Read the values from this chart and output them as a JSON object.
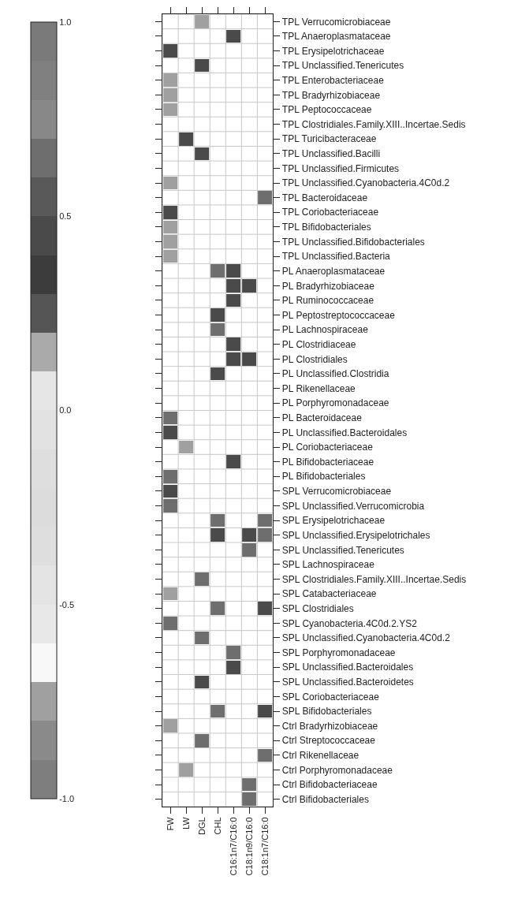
{
  "chart_data": {
    "type": "heatmap",
    "categories": [
      "FW",
      "LW",
      "DGL",
      "CHL",
      "C16:1n7/C16:0",
      "C18:1n9/C16:0",
      "C18:1n7/C16:0"
    ],
    "y_categories": [
      "TPL Verrucomicrobiaceae",
      "TPL Anaeroplasmataceae",
      "TPL Erysipelotrichaceae",
      "TPL Unclassified.Tenericutes",
      "TPL Enterobacteriaceae",
      "TPL Bradyrhizobiaceae",
      "TPL Peptococcaceae",
      "TPL Clostridiales.Family.XIII..Incertae.Sedis",
      "TPL Turicibacteraceae",
      "TPL Unclassified.Bacilli",
      "TPL Unclassified.Firmicutes",
      "TPL Unclassified.Cyanobacteria.4C0d.2",
      "TPL Bacteroidaceae",
      "TPL Coriobacteriaceae",
      "TPL Bifidobacteriales",
      "TPL Unclassified.Bifidobacteriales",
      "TPL Unclassified.Bacteria",
      "PL Anaeroplasmataceae",
      "PL Bradyrhizobiaceae",
      "PL Ruminococcaceae",
      "PL Peptostreptococcaceae",
      "PL Lachnospiraceae",
      "PL Clostridiaceae",
      "PL Clostridiales",
      "PL Unclassified.Clostridia",
      "PL Rikenellaceae",
      "PL Porphyromonadaceae",
      "PL Bacteroidaceae",
      "PL Unclassified.Bacteroidales",
      "PL Coriobacteriaceae",
      "PL Bifidobacteriaceae",
      "PL Bifidobacteriales",
      "SPL Verrucomicrobiaceae",
      "SPL Unclassified.Verrucomicrobia",
      "SPL Erysipelotrichaceae",
      "SPL Unclassified.Erysipelotrichales",
      "SPL Unclassified.Tenericutes",
      "SPL Lachnospiraceae",
      "SPL Clostridiales.Family.XIII..Incertae.Sedis",
      "SPL Catabacteriaceae",
      "SPL Clostridiales",
      "SPL Cyanobacteria.4C0d.2.YS2",
      "SPL Unclassified.Cyanobacteria.4C0d.2",
      "SPL Porphyromonadaceae",
      "SPL Unclassified.Bacteroidales",
      "SPL Unclassified.Bacteroidetes",
      "SPL Coriobacteriaceae",
      "SPL Bifidobacteriales",
      "Ctrl Bradyrhizobiaceae",
      "Ctrl Streptococcaceae",
      "Ctrl Rikenellaceae",
      "Ctrl Porphyromonadaceae",
      "Ctrl Bifidobacteriaceae",
      "Ctrl Bifidobacteriales"
    ],
    "cells": [
      [
        null,
        null,
        -0.75,
        null,
        null,
        null,
        null
      ],
      [
        null,
        null,
        null,
        null,
        0.45,
        null,
        null
      ],
      [
        0.45,
        null,
        null,
        null,
        null,
        null,
        null
      ],
      [
        null,
        null,
        0.45,
        null,
        null,
        null,
        null
      ],
      [
        -0.75,
        null,
        null,
        null,
        null,
        null,
        null
      ],
      [
        -0.75,
        null,
        null,
        null,
        null,
        null,
        null
      ],
      [
        -0.75,
        null,
        null,
        null,
        null,
        null,
        null
      ],
      [
        null,
        null,
        null,
        null,
        null,
        null,
        null
      ],
      [
        null,
        0.45,
        null,
        null,
        null,
        null,
        null
      ],
      [
        null,
        null,
        0.45,
        null,
        null,
        null,
        null
      ],
      [
        null,
        null,
        null,
        null,
        null,
        null,
        null
      ],
      [
        -0.75,
        null,
        null,
        null,
        null,
        null,
        null
      ],
      [
        null,
        null,
        null,
        null,
        null,
        null,
        0.65
      ],
      [
        0.45,
        null,
        null,
        null,
        null,
        null,
        null
      ],
      [
        -0.75,
        null,
        null,
        null,
        null,
        null,
        null
      ],
      [
        -0.75,
        null,
        null,
        null,
        null,
        null,
        null
      ],
      [
        -0.75,
        null,
        null,
        null,
        null,
        null,
        null
      ],
      [
        null,
        null,
        null,
        0.65,
        0.45,
        null,
        null
      ],
      [
        null,
        null,
        null,
        null,
        0.45,
        0.45,
        null
      ],
      [
        null,
        null,
        null,
        null,
        0.45,
        null,
        null
      ],
      [
        null,
        null,
        null,
        0.45,
        null,
        null,
        null
      ],
      [
        null,
        null,
        null,
        0.65,
        null,
        null,
        null
      ],
      [
        null,
        null,
        null,
        null,
        0.45,
        null,
        null
      ],
      [
        null,
        null,
        null,
        null,
        0.45,
        0.45,
        null
      ],
      [
        null,
        null,
        null,
        0.45,
        null,
        null,
        null
      ],
      [
        null,
        null,
        null,
        null,
        null,
        null,
        null
      ],
      [
        null,
        null,
        null,
        null,
        null,
        null,
        null
      ],
      [
        0.65,
        null,
        null,
        null,
        null,
        null,
        null
      ],
      [
        0.45,
        null,
        null,
        null,
        null,
        null,
        null
      ],
      [
        null,
        -0.75,
        null,
        null,
        null,
        null,
        null
      ],
      [
        null,
        null,
        null,
        null,
        0.45,
        null,
        null
      ],
      [
        0.65,
        null,
        null,
        null,
        null,
        null,
        null
      ],
      [
        0.45,
        null,
        null,
        null,
        null,
        null,
        null
      ],
      [
        0.65,
        null,
        null,
        null,
        null,
        null,
        null
      ],
      [
        null,
        null,
        null,
        0.65,
        null,
        null,
        0.65
      ],
      [
        null,
        null,
        null,
        0.45,
        null,
        0.45,
        0.65
      ],
      [
        null,
        null,
        null,
        null,
        null,
        0.65,
        null
      ],
      [
        null,
        null,
        null,
        null,
        null,
        null,
        null
      ],
      [
        null,
        null,
        0.65,
        null,
        null,
        null,
        null
      ],
      [
        -0.75,
        null,
        null,
        null,
        null,
        null,
        null
      ],
      [
        null,
        null,
        null,
        0.65,
        null,
        null,
        0.45
      ],
      [
        0.65,
        null,
        null,
        null,
        null,
        null,
        null
      ],
      [
        null,
        null,
        0.65,
        null,
        null,
        null,
        null
      ],
      [
        null,
        null,
        null,
        null,
        0.65,
        null,
        null
      ],
      [
        null,
        null,
        null,
        null,
        0.45,
        null,
        null
      ],
      [
        null,
        null,
        0.45,
        null,
        null,
        null,
        null
      ],
      [
        null,
        null,
        null,
        null,
        null,
        null,
        null
      ],
      [
        null,
        null,
        null,
        0.65,
        null,
        null,
        0.45
      ],
      [
        -0.75,
        null,
        null,
        null,
        null,
        null,
        null
      ],
      [
        null,
        null,
        0.65,
        null,
        null,
        null,
        null
      ],
      [
        null,
        null,
        null,
        null,
        null,
        null,
        0.65
      ],
      [
        null,
        -0.75,
        null,
        null,
        null,
        null,
        null
      ],
      [
        null,
        null,
        null,
        null,
        null,
        0.65,
        null
      ],
      [
        null,
        null,
        null,
        null,
        null,
        0.65,
        null
      ]
    ],
    "clim": [
      -1,
      1
    ],
    "cticks": [
      {
        "value": 1,
        "label": "1.0"
      },
      {
        "value": 0.5,
        "label": "0.5"
      },
      {
        "value": 0,
        "label": "0.0"
      },
      {
        "value": -0.5,
        "label": "-0.5"
      },
      {
        "value": -1,
        "label": "-1.0"
      }
    ],
    "grid": true
  }
}
